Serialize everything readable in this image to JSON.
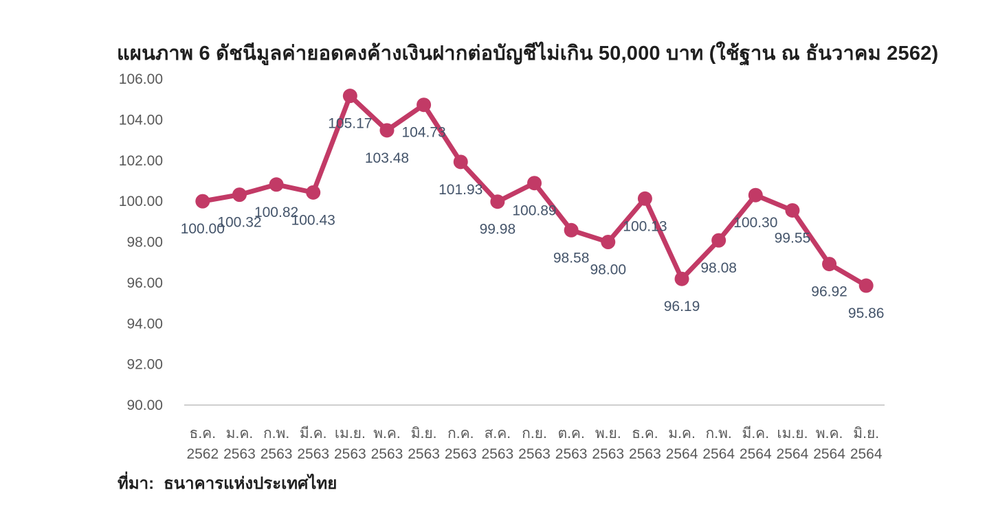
{
  "title": "แผนภาพ 6  ดัชนีมูลค่ายอดคงค้างเงินฝากต่อบัญชีไม่เกิน 50,000 บาท (ใช้ฐาน ณ ธันวาคม 2562)",
  "source": {
    "label": "ที่มา:",
    "text": "ธนาคารแห่งประเทศไทย"
  },
  "chart_data": {
    "type": "line",
    "title": "แผนภาพ 6  ดัชนีมูลค่ายอดคงค้างเงินฝากต่อบัญชีไม่เกิน 50,000 บาท (ใช้ฐาน ณ ธันวาคม 2562)",
    "categories": [
      {
        "month": "ธ.ค.",
        "year": "2562"
      },
      {
        "month": "ม.ค.",
        "year": "2563"
      },
      {
        "month": "ก.พ.",
        "year": "2563"
      },
      {
        "month": "มี.ค.",
        "year": "2563"
      },
      {
        "month": "เม.ย.",
        "year": "2563"
      },
      {
        "month": "พ.ค.",
        "year": "2563"
      },
      {
        "month": "มิ.ย.",
        "year": "2563"
      },
      {
        "month": "ก.ค.",
        "year": "2563"
      },
      {
        "month": "ส.ค.",
        "year": "2563"
      },
      {
        "month": "ก.ย.",
        "year": "2563"
      },
      {
        "month": "ต.ค.",
        "year": "2563"
      },
      {
        "month": "พ.ย.",
        "year": "2563"
      },
      {
        "month": "ธ.ค.",
        "year": "2563"
      },
      {
        "month": "ม.ค.",
        "year": "2564"
      },
      {
        "month": "ก.พ.",
        "year": "2564"
      },
      {
        "month": "มี.ค.",
        "year": "2564"
      },
      {
        "month": "เม.ย.",
        "year": "2564"
      },
      {
        "month": "พ.ค.",
        "year": "2564"
      },
      {
        "month": "มิ.ย.",
        "year": "2564"
      }
    ],
    "values": [
      100.0,
      100.32,
      100.82,
      100.43,
      105.17,
      103.48,
      104.73,
      101.93,
      99.98,
      100.89,
      98.58,
      98.0,
      100.13,
      96.19,
      98.08,
      100.3,
      99.55,
      96.92,
      95.86
    ],
    "xlabel": "",
    "ylabel": "",
    "ylim": [
      90,
      106
    ],
    "ytick_step": 2,
    "grid": false,
    "legend": false,
    "data_labels": true,
    "line_color": "#C23A66",
    "marker_color": "#C23A66",
    "axis_line_color": "#BFBFBF",
    "axis_text_color": "#595959",
    "data_label_color": "#44546A"
  }
}
